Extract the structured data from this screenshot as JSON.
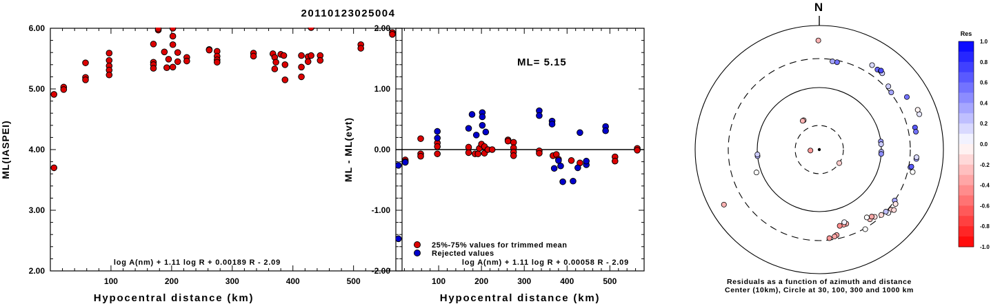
{
  "title": "20110123025004",
  "colors": {
    "red": "#dd0000",
    "blue": "#0000cc",
    "axis": "#000000"
  },
  "chart_data": [
    {
      "type": "scatter",
      "id": "ml-vs-distance",
      "xlabel": "Hypocentral distance (km)",
      "ylabel": "ML(IASPEI)",
      "xlim": [
        0,
        580
      ],
      "ylim": [
        2.0,
        6.0
      ],
      "xticks": [
        "100",
        "200",
        "300",
        "400",
        "500"
      ],
      "xtick_values": [
        100,
        200,
        300,
        400,
        500
      ],
      "yticks": [
        "2.00",
        "3.00",
        "4.00",
        "5.00",
        "6.00"
      ],
      "ytick_values": [
        2,
        3,
        4,
        5,
        6
      ],
      "formula": "log A(nm) + 1.11 log R + 0.00189 R - 2.09",
      "points": [
        [
          6,
          4.91
        ],
        [
          6,
          3.7
        ],
        [
          22,
          5.03
        ],
        [
          22,
          4.99
        ],
        [
          58,
          5.43
        ],
        [
          58,
          5.19
        ],
        [
          58,
          5.15
        ],
        [
          97,
          5.59
        ],
        [
          97,
          5.47
        ],
        [
          97,
          5.38
        ],
        [
          97,
          5.31
        ],
        [
          97,
          5.23
        ],
        [
          170,
          5.74
        ],
        [
          170,
          5.44
        ],
        [
          170,
          5.4
        ],
        [
          170,
          5.34
        ],
        [
          178,
          5.97
        ],
        [
          178,
          5.99
        ],
        [
          188,
          5.61
        ],
        [
          192,
          5.35
        ],
        [
          195,
          5.49
        ],
        [
          202,
          6.0
        ],
        [
          202,
          5.87
        ],
        [
          202,
          5.73
        ],
        [
          202,
          5.36
        ],
        [
          210,
          5.45
        ],
        [
          210,
          5.6
        ],
        [
          225,
          5.52
        ],
        [
          225,
          5.46
        ],
        [
          262,
          5.65
        ],
        [
          262,
          5.64
        ],
        [
          275,
          5.62
        ],
        [
          275,
          5.54
        ],
        [
          275,
          5.48
        ],
        [
          275,
          5.44
        ],
        [
          335,
          5.59
        ],
        [
          335,
          5.54
        ],
        [
          367,
          5.58
        ],
        [
          370,
          5.52
        ],
        [
          372,
          5.44
        ],
        [
          370,
          5.33
        ],
        [
          380,
          5.57
        ],
        [
          385,
          5.55
        ],
        [
          387,
          5.4
        ],
        [
          387,
          5.15
        ],
        [
          414,
          5.55
        ],
        [
          414,
          5.36
        ],
        [
          414,
          5.2
        ],
        [
          425,
          5.53
        ],
        [
          425,
          5.45
        ],
        [
          430,
          5.55
        ],
        [
          430,
          6.01
        ],
        [
          445,
          5.55
        ],
        [
          445,
          5.47
        ],
        [
          512,
          5.73
        ],
        [
          512,
          5.67
        ],
        [
          564,
          5.93
        ],
        [
          564,
          5.9
        ]
      ]
    },
    {
      "type": "scatter",
      "id": "residual-vs-distance",
      "xlabel": "Hypocentral distance (km)",
      "ylabel": "ML - ML(evt)",
      "xlim": [
        0,
        580
      ],
      "ylim": [
        -2.0,
        2.0
      ],
      "xticks": [
        "100",
        "200",
        "300",
        "400",
        "500"
      ],
      "xtick_values": [
        100,
        200,
        300,
        400,
        500
      ],
      "yticks": [
        "-2.00",
        "-1.00",
        "0.00",
        "1.00",
        "2.00"
      ],
      "ytick_values": [
        -2,
        -1,
        0,
        1,
        2
      ],
      "annotation": "ML= 5.15",
      "formula": "log A(nm) + 1.11 log R + 0.00058 R - 2.09",
      "legend": [
        "25%-75% values for trimmed mean",
        "Rejected values"
      ],
      "series": [
        {
          "name": "25%-75% values for trimmed mean",
          "color": "#dd0000",
          "points": [
            [
              22,
              -0.17
            ],
            [
              22,
              -0.2
            ],
            [
              58,
              0.18
            ],
            [
              58,
              -0.07
            ],
            [
              58,
              -0.11
            ],
            [
              97,
              0.11
            ],
            [
              97,
              0.05
            ],
            [
              97,
              -0.07
            ],
            [
              170,
              0.04
            ],
            [
              170,
              -0.05
            ],
            [
              185,
              -0.07
            ],
            [
              192,
              -0.07
            ],
            [
              195,
              0.02
            ],
            [
              200,
              0.09
            ],
            [
              207,
              0.05
            ],
            [
              207,
              -0.06
            ],
            [
              215,
              0.0
            ],
            [
              225,
              0.0
            ],
            [
              262,
              0.16
            ],
            [
              262,
              0.14
            ],
            [
              275,
              0.12
            ],
            [
              275,
              0.03
            ],
            [
              275,
              -0.04
            ],
            [
              275,
              -0.1
            ],
            [
              335,
              -0.02
            ],
            [
              335,
              -0.06
            ],
            [
              367,
              -0.1
            ],
            [
              375,
              -0.08
            ],
            [
              380,
              -0.16
            ],
            [
              410,
              -0.18
            ],
            [
              430,
              -0.22
            ],
            [
              512,
              -0.12
            ],
            [
              512,
              -0.19
            ],
            [
              564,
              0.02
            ],
            [
              564,
              -0.01
            ]
          ]
        },
        {
          "name": "Rejected values",
          "color": "#0000cc",
          "points": [
            [
              6,
              -0.26
            ],
            [
              6,
              -1.47
            ],
            [
              22,
              -0.21
            ],
            [
              97,
              0.3
            ],
            [
              97,
              0.19
            ],
            [
              170,
              0.35
            ],
            [
              178,
              0.58
            ],
            [
              188,
              0.24
            ],
            [
              202,
              0.61
            ],
            [
              202,
              0.54
            ],
            [
              202,
              0.4
            ],
            [
              210,
              0.29
            ],
            [
              335,
              0.64
            ],
            [
              335,
              0.56
            ],
            [
              365,
              0.47
            ],
            [
              365,
              0.42
            ],
            [
              370,
              -0.31
            ],
            [
              380,
              -0.18
            ],
            [
              385,
              -0.27
            ],
            [
              390,
              -0.53
            ],
            [
              414,
              -0.52
            ],
            [
              425,
              -0.3
            ],
            [
              430,
              0.28
            ],
            [
              445,
              -0.25
            ],
            [
              445,
              -0.19
            ],
            [
              490,
              0.38
            ],
            [
              490,
              0.31
            ]
          ]
        }
      ]
    },
    {
      "type": "polar-scatter",
      "id": "azimuth-residuals",
      "north_label": "N",
      "caption_line1": "Residuals as a function of azimuth and distance",
      "caption_line2": "Center (10km), Circle at 30, 100, 300 and 1000 km",
      "colorbar_title": "Res",
      "colorbar_ticks": [
        "1.0",
        "0.8",
        "0.6",
        "0.4",
        "0.2",
        "0.0",
        "-0.2",
        "-0.4",
        "-0.6",
        "-0.8",
        "-1.0"
      ],
      "colorbar_values": [
        1.0,
        0.8,
        0.6,
        0.4,
        0.2,
        0.0,
        -0.2,
        -0.4,
        -0.6,
        -0.8,
        -1.0
      ],
      "rings_km": [
        30,
        100,
        300,
        1000
      ],
      "center_km": 10,
      "points": [
        {
          "az": 359.5,
          "dist": 580,
          "res": -0.3
        },
        {
          "az": 11.5,
          "dist": 280,
          "res": 0.55
        },
        {
          "az": 8.5,
          "dist": 280,
          "res": 0.35
        },
        {
          "az": 32.0,
          "dist": 410,
          "res": 0.15
        },
        {
          "az": 36.0,
          "dist": 400,
          "res": 0.6
        },
        {
          "az": 38.0,
          "dist": 410,
          "res": 0.4
        },
        {
          "az": 39.5,
          "dist": 400,
          "res": 0.2
        },
        {
          "az": 38.0,
          "dist": 420,
          "res": 0.7
        },
        {
          "az": 47.5,
          "dist": 330,
          "res": 0.2
        },
        {
          "az": 51.5,
          "dist": 310,
          "res": 0.35
        },
        {
          "az": 59.0,
          "dist": 450,
          "res": 0.55
        },
        {
          "az": 70.5,
          "dist": 520,
          "res": 0.1
        },
        {
          "az": 68.0,
          "dist": 520,
          "res": -0.05
        },
        {
          "az": 77.0,
          "dist": 390,
          "res": 0.65
        },
        {
          "az": 79.5,
          "dist": 390,
          "res": 0.55
        },
        {
          "az": 82.5,
          "dist": 100,
          "res": 0.4
        },
        {
          "az": 85.0,
          "dist": 100,
          "res": 0.2
        },
        {
          "az": 92.0,
          "dist": 100,
          "res": 0.3
        },
        {
          "az": 94.0,
          "dist": 100,
          "res": 0.45
        },
        {
          "az": 95.5,
          "dist": 380,
          "res": 0.4
        },
        {
          "az": 94.5,
          "dist": 380,
          "res": 0.15
        },
        {
          "az": 101.0,
          "dist": 320,
          "res": 0.45
        },
        {
          "az": 100.5,
          "dist": 330,
          "res": 0.65
        },
        {
          "az": 103.5,
          "dist": 360,
          "res": 0.0
        },
        {
          "az": 124.0,
          "dist": 300,
          "res": 0.35
        },
        {
          "az": 125.5,
          "dist": 330,
          "res": -0.1
        },
        {
          "az": 130.0,
          "dist": 330,
          "res": -0.2
        },
        {
          "az": 129.0,
          "dist": 360,
          "res": -0.15
        },
        {
          "az": 132.5,
          "dist": 330,
          "res": 0.05
        },
        {
          "az": 133.0,
          "dist": 300,
          "res": 0.25
        },
        {
          "az": 136.5,
          "dist": 290,
          "res": -0.15
        },
        {
          "az": 140.5,
          "dist": 260,
          "res": -0.15
        },
        {
          "az": 144.0,
          "dist": 250,
          "res": -0.25
        },
        {
          "az": 142.0,
          "dist": 240,
          "res": -0.35
        },
        {
          "az": 145.0,
          "dist": 220,
          "res": 0.0
        },
        {
          "az": 150.0,
          "dist": 310,
          "res": 0.0
        },
        {
          "az": 160.0,
          "dist": 190,
          "res": -0.3
        },
        {
          "az": 162.0,
          "dist": 190,
          "res": -0.4
        },
        {
          "az": 161.0,
          "dist": 175,
          "res": 0.05
        },
        {
          "az": 165.0,
          "dist": 190,
          "res": -0.45
        },
        {
          "az": 168.5,
          "dist": 260,
          "res": -0.35
        },
        {
          "az": 170.0,
          "dist": 270,
          "res": -0.35
        },
        {
          "az": 173.5,
          "dist": 280,
          "res": -0.4
        },
        {
          "az": 124.0,
          "dist": 30,
          "res": -0.2
        },
        {
          "az": 264.0,
          "dist": 15,
          "res": -0.4
        },
        {
          "az": 240.0,
          "dist": 600,
          "res": -0.3
        },
        {
          "az": 250.0,
          "dist": 120,
          "res": 0.0
        },
        {
          "az": 264.0,
          "dist": 100,
          "res": 0.3
        },
        {
          "az": 265.5,
          "dist": 100,
          "res": 0.2
        },
        {
          "az": 332.0,
          "dist": 40,
          "res": -0.2
        },
        {
          "az": 330.0,
          "dist": 40,
          "res": -0.3
        }
      ]
    }
  ]
}
